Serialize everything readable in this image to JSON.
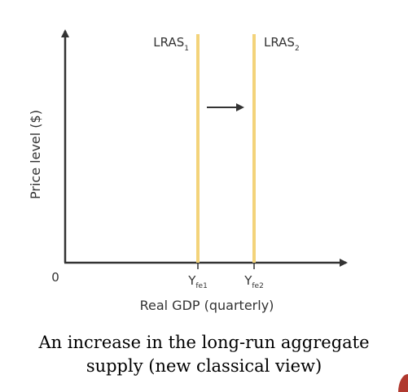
{
  "diagram": {
    "y_axis_label": "Price level ($)",
    "x_axis_label": "Real GDP (quarterly)",
    "origin_label": "0",
    "curves": [
      {
        "name": "LRAS",
        "subscript": "1",
        "x_label": "Y",
        "x_label_sub": "fe1"
      },
      {
        "name": "LRAS",
        "subscript": "2",
        "x_label": "Y",
        "x_label_sub": "fe2"
      }
    ],
    "shift_direction": "right",
    "colors": {
      "curve": "#f3d37a",
      "axis": "#333333"
    }
  },
  "caption": {
    "line1": "An increase in the long-run aggregate",
    "line2": "supply (new classical view)"
  }
}
